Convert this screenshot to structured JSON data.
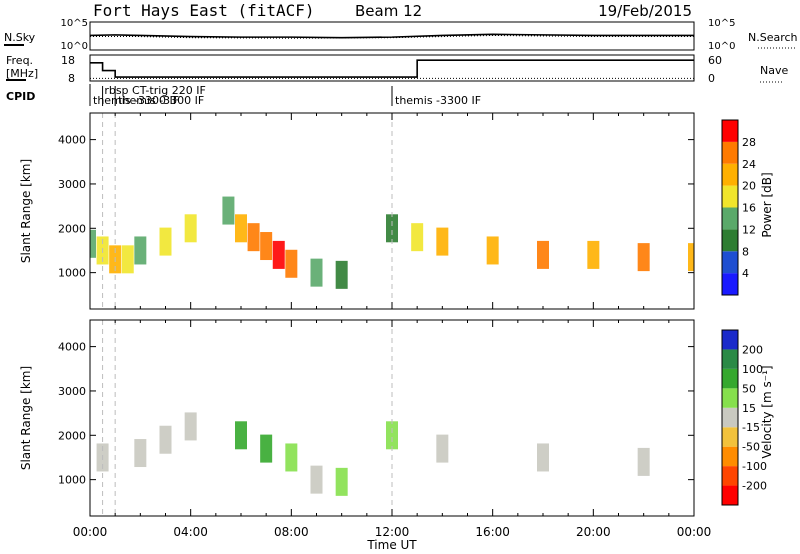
{
  "header": {
    "title": "Fort Hays East (fitACF)",
    "beam": "Beam 12",
    "date": "19/Feb/2015"
  },
  "panels": {
    "noise": {
      "left_label": "N.Sky",
      "right_label": "N.Search",
      "left_ticks": [
        "10^5",
        "10^0"
      ],
      "right_ticks": [
        "10^5",
        "10^0"
      ]
    },
    "freq": {
      "left_label_1": "Freq.",
      "left_label_2": "[MHz]",
      "right_label": "Nave",
      "left_ticks": [
        "18",
        "8"
      ],
      "right_ticks": [
        "60",
        "0"
      ]
    },
    "cpid": {
      "label": "CPID",
      "entries": [
        {
          "text": "rbsp CT-trig 220 IF",
          "x_hour": 0.45,
          "row": 0
        },
        {
          "text": "themis -3300 IF",
          "x_hour": 0.0,
          "row": 1
        },
        {
          "text": "themis -3300 IF",
          "x_hour": 1.0,
          "row": 1
        },
        {
          "text": "themis -3300 IF",
          "x_hour": 12.0,
          "row": 1
        }
      ]
    }
  },
  "axes": {
    "x_ticks": [
      "00:00",
      "04:00",
      "08:00",
      "12:00",
      "16:00",
      "20:00",
      "00:00"
    ],
    "x_label": "Time UT",
    "y_label": "Slant Range [km]",
    "y_ticks": [
      "1000",
      "2000",
      "3000",
      "4000"
    ]
  },
  "colorbars": {
    "power": {
      "label": "Power [dB]",
      "ticks": [
        "4",
        "8",
        "12",
        "16",
        "20",
        "24",
        "28"
      ],
      "colors": [
        "#1a1aff",
        "#1f4fd1",
        "#2e7d32",
        "#5aa96a",
        "#f1e52b",
        "#ffb000",
        "#ff7a00",
        "#ff0000"
      ]
    },
    "velocity": {
      "label": "Velocity [m s⁻¹]",
      "ticks": [
        "200",
        "100",
        "50",
        "15",
        "-15",
        "-50",
        "-100",
        "-200"
      ],
      "colors": [
        "#1a2acb",
        "#2a8a46",
        "#35a82e",
        "#86e04d",
        "#c9c9c0",
        "#f2c23c",
        "#ff8c00",
        "#ff4500",
        "#ff0000"
      ]
    }
  },
  "chart_data": {
    "type": "heatmap",
    "x_range": [
      "00:00",
      "00:00"
    ],
    "x_range_hours": [
      0,
      24
    ],
    "y_range_km": [
      180,
      4600
    ],
    "noise": {
      "sky_log10": [
        [
          0,
          2.6
        ],
        [
          1,
          2.7
        ],
        [
          2,
          2.6
        ],
        [
          4,
          2.4
        ],
        [
          6,
          2.3
        ],
        [
          8,
          2.3
        ],
        [
          10,
          2.2
        ],
        [
          12,
          2.3
        ],
        [
          14,
          2.6
        ],
        [
          16,
          2.8
        ],
        [
          18,
          2.7
        ],
        [
          20,
          2.6
        ],
        [
          22,
          2.6
        ],
        [
          24,
          2.6
        ]
      ],
      "search_log10": [
        [
          0,
          2.4
        ],
        [
          2,
          2.4
        ],
        [
          4,
          2.2
        ],
        [
          8,
          2.1
        ],
        [
          12,
          2.2
        ],
        [
          16,
          2.6
        ],
        [
          20,
          2.4
        ],
        [
          24,
          2.4
        ]
      ]
    },
    "frequency_mhz": [
      [
        0,
        15.0
      ],
      [
        0.5,
        15.0
      ],
      [
        0.5,
        12.0
      ],
      [
        1.0,
        12.0
      ],
      [
        1.0,
        9.5
      ],
      [
        13.0,
        9.5
      ],
      [
        13.0,
        16.0
      ],
      [
        24.0,
        16.0
      ]
    ],
    "nave": [
      [
        0,
        6
      ],
      [
        24,
        6
      ]
    ],
    "power_dB": [
      {
        "t": 0.0,
        "r": 1650,
        "v": 14
      },
      {
        "t": 0.5,
        "r": 1500,
        "v": 18
      },
      {
        "t": 1.0,
        "r": 1300,
        "v": 20
      },
      {
        "t": 1.5,
        "r": 1300,
        "v": 16
      },
      {
        "t": 2.0,
        "r": 1500,
        "v": 14
      },
      {
        "t": 3.0,
        "r": 1700,
        "v": 16
      },
      {
        "t": 4.0,
        "r": 2000,
        "v": 18
      },
      {
        "t": 5.5,
        "r": 2400,
        "v": 14
      },
      {
        "t": 6.0,
        "r": 2000,
        "v": 20
      },
      {
        "t": 6.5,
        "r": 1800,
        "v": 24
      },
      {
        "t": 7.0,
        "r": 1600,
        "v": 26
      },
      {
        "t": 7.5,
        "r": 1400,
        "v": 28
      },
      {
        "t": 8.0,
        "r": 1200,
        "v": 24
      },
      {
        "t": 9.0,
        "r": 1000,
        "v": 12
      },
      {
        "t": 10.0,
        "r": 950,
        "v": 10
      },
      {
        "t": 12.0,
        "r": 2000,
        "v": 10
      },
      {
        "t": 13.0,
        "r": 1800,
        "v": 16
      },
      {
        "t": 14.0,
        "r": 1700,
        "v": 20
      },
      {
        "t": 16.0,
        "r": 1500,
        "v": 22
      },
      {
        "t": 18.0,
        "r": 1400,
        "v": 24
      },
      {
        "t": 20.0,
        "r": 1400,
        "v": 22
      },
      {
        "t": 22.0,
        "r": 1350,
        "v": 24
      },
      {
        "t": 24.0,
        "r": 1350,
        "v": 22
      }
    ],
    "velocity_ms": [
      {
        "t": 0.5,
        "r": 1500,
        "v": -10
      },
      {
        "t": 2.0,
        "r": 1600,
        "v": 0
      },
      {
        "t": 3.0,
        "r": 1900,
        "v": -5
      },
      {
        "t": 4.0,
        "r": 2200,
        "v": 5
      },
      {
        "t": 6.0,
        "r": 2000,
        "v": 60
      },
      {
        "t": 7.0,
        "r": 1700,
        "v": 80
      },
      {
        "t": 8.0,
        "r": 1500,
        "v": 40
      },
      {
        "t": 9.0,
        "r": 1000,
        "v": 0
      },
      {
        "t": 10.0,
        "r": 950,
        "v": 20
      },
      {
        "t": 12.0,
        "r": 2000,
        "v": 30
      },
      {
        "t": 14.0,
        "r": 1700,
        "v": 0
      },
      {
        "t": 18.0,
        "r": 1500,
        "v": 0
      },
      {
        "t": 22.0,
        "r": 1400,
        "v": 0
      }
    ],
    "vertical_markers_hours": [
      0.5,
      1.0,
      12.0
    ]
  }
}
